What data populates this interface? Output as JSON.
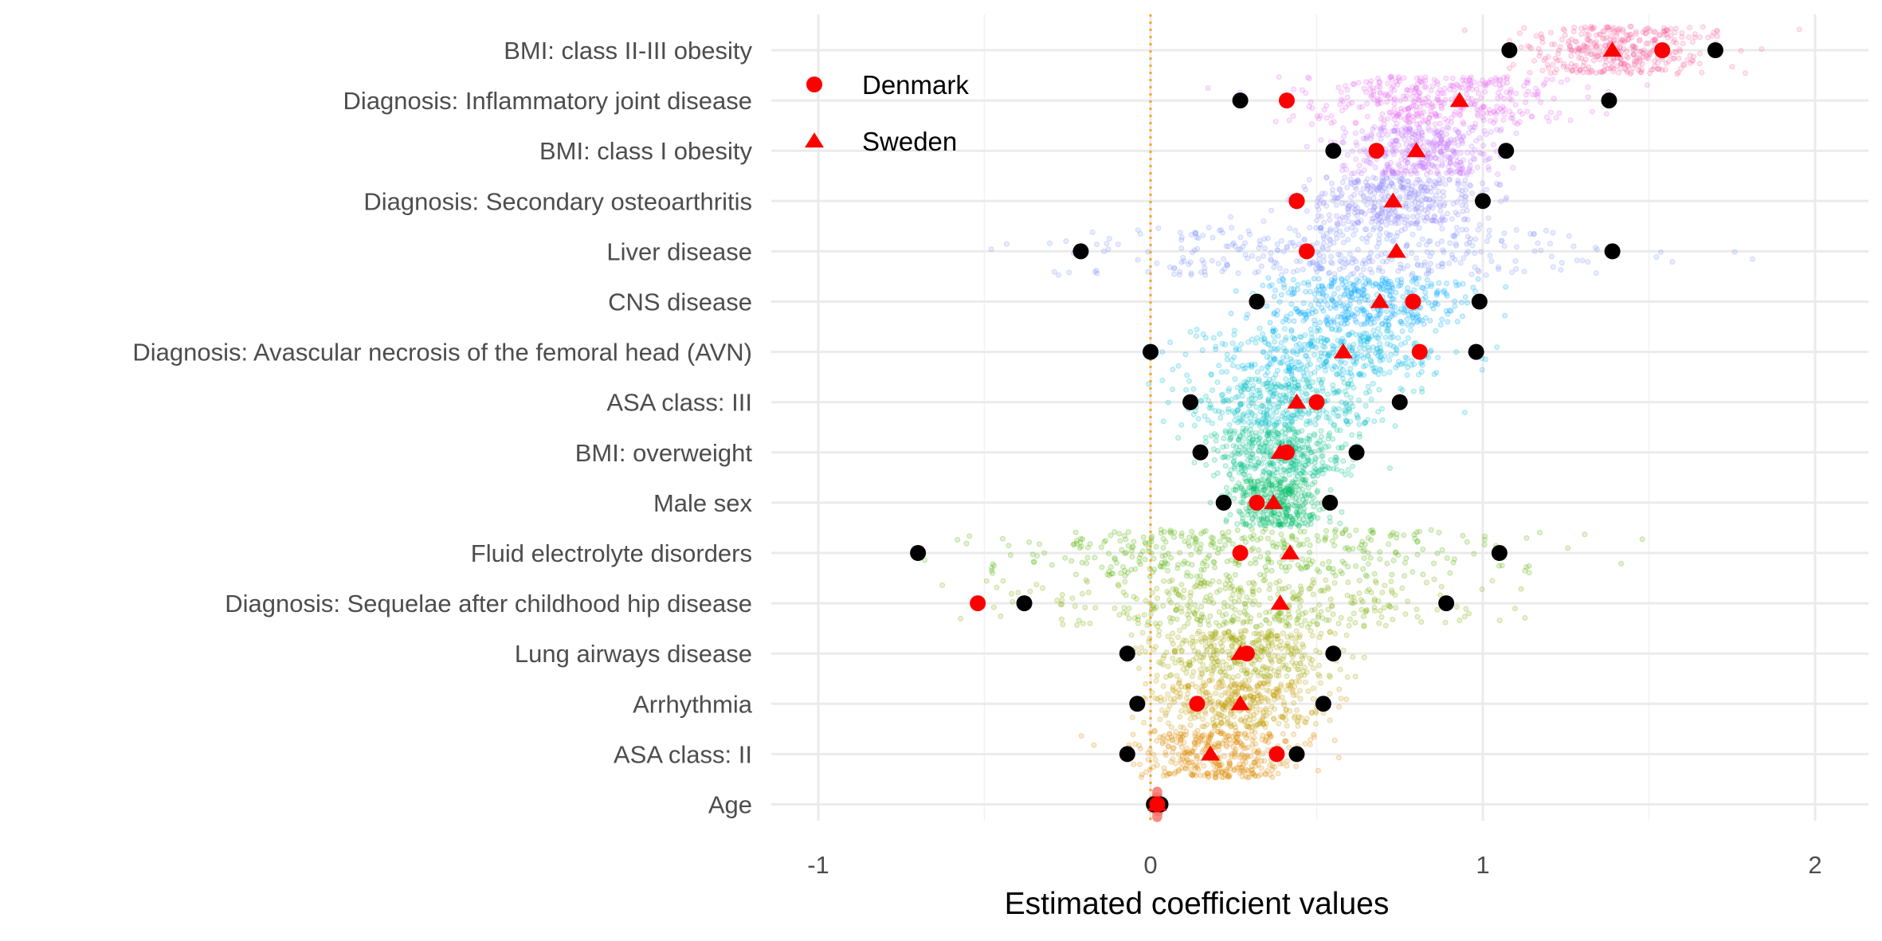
{
  "chart_data": {
    "type": "scatter",
    "xlabel": "Estimated coefficient values",
    "xlim": [
      -1.13,
      2.13
    ],
    "xticks": [
      -1,
      0,
      1,
      2
    ],
    "xtick_labels": [
      "-1",
      "0",
      "1",
      "2"
    ],
    "reference_line": 0,
    "grid": true,
    "legend_position": "top-left",
    "legend": [
      {
        "name": "Denmark",
        "shape": "circle",
        "color": "#ff0000"
      },
      {
        "name": "Sweden",
        "shape": "triangle",
        "color": "#ff0000"
      }
    ],
    "colors": {
      "ci_points": "#000000",
      "estimates": "#ff0000",
      "reference_line": "#f5a623",
      "grid": "#ebebeb"
    },
    "categories": [
      "BMI: class II-III obesity",
      "Diagnosis: Inflammatory joint disease",
      "BMI: class I obesity",
      "Diagnosis: Secondary osteoarthritis",
      "Liver disease",
      "CNS disease",
      "Diagnosis: Avascular necrosis of the femoral head (AVN)",
      "ASA class: III",
      "BMI: overweight",
      "Male sex",
      "Fluid electrolyte disorders",
      "Diagnosis: Sequelae after childhood hip disease",
      "Lung airways disease",
      "Arrhythmia",
      "ASA class: II",
      "Age"
    ],
    "rows": [
      {
        "label": "BMI: class II-III obesity",
        "ci_low": 1.08,
        "ci_high": 1.7,
        "denmark": 1.54,
        "sweden": 1.39,
        "center": 1.42,
        "spread": 0.14,
        "color": "#f767a1"
      },
      {
        "label": "Diagnosis: Inflammatory joint disease",
        "ci_low": 0.27,
        "ci_high": 1.38,
        "denmark": 0.41,
        "sweden": 0.93,
        "center": 0.84,
        "spread": 0.2,
        "color": "#e76bf3"
      },
      {
        "label": "BMI: class I obesity",
        "ci_low": 0.55,
        "ci_high": 1.07,
        "denmark": 0.68,
        "sweden": 0.8,
        "center": 0.81,
        "spread": 0.12,
        "color": "#c77cff"
      },
      {
        "label": "Diagnosis: Secondary osteoarthritis",
        "ci_low": 0.44,
        "ci_high": 1.0,
        "denmark": 0.44,
        "sweden": 0.73,
        "center": 0.73,
        "spread": 0.13,
        "color": "#9590ff"
      },
      {
        "label": "Liver disease",
        "ci_low": -0.21,
        "ci_high": 1.39,
        "denmark": 0.47,
        "sweden": 0.74,
        "center": 0.62,
        "spread": 0.35,
        "color": "#7f96ff"
      },
      {
        "label": "CNS disease",
        "ci_low": 0.32,
        "ci_high": 0.99,
        "denmark": 0.79,
        "sweden": 0.69,
        "center": 0.64,
        "spread": 0.15,
        "color": "#00a9ff"
      },
      {
        "label": "Diagnosis: Avascular necrosis of the femoral head (AVN)",
        "ci_low": 0.0,
        "ci_high": 0.98,
        "denmark": 0.81,
        "sweden": 0.58,
        "center": 0.52,
        "spread": 0.19,
        "color": "#00b8e7"
      },
      {
        "label": "ASA class: III",
        "ci_low": 0.12,
        "ci_high": 0.75,
        "denmark": 0.5,
        "sweden": 0.44,
        "center": 0.41,
        "spread": 0.14,
        "color": "#00bfc4"
      },
      {
        "label": "BMI: overweight",
        "ci_low": 0.15,
        "ci_high": 0.62,
        "denmark": 0.41,
        "sweden": 0.39,
        "center": 0.39,
        "spread": 0.1,
        "color": "#00c08b"
      },
      {
        "label": "Male sex",
        "ci_low": 0.22,
        "ci_high": 0.54,
        "denmark": 0.32,
        "sweden": 0.37,
        "center": 0.38,
        "spread": 0.07,
        "color": "#00be67"
      },
      {
        "label": "Fluid electrolyte disorders",
        "ci_low": -0.7,
        "ci_high": 1.05,
        "denmark": 0.27,
        "sweden": 0.42,
        "center": 0.3,
        "spread": 0.37,
        "color": "#53b400"
      },
      {
        "label": "Diagnosis: Sequelae after childhood hip disease",
        "ci_low": -0.38,
        "ci_high": 0.89,
        "denmark": -0.52,
        "sweden": 0.39,
        "center": 0.28,
        "spread": 0.3,
        "color": "#7cae00"
      },
      {
        "label": "Lung airways disease",
        "ci_low": -0.07,
        "ci_high": 0.55,
        "denmark": 0.29,
        "sweden": 0.27,
        "center": 0.27,
        "spread": 0.14,
        "color": "#a3a500"
      },
      {
        "label": "Arrhythmia",
        "ci_low": -0.04,
        "ci_high": 0.52,
        "denmark": 0.14,
        "sweden": 0.27,
        "center": 0.26,
        "spread": 0.13,
        "color": "#c49a00"
      },
      {
        "label": "ASA class: II",
        "ci_low": -0.07,
        "ci_high": 0.44,
        "denmark": 0.38,
        "sweden": 0.18,
        "center": 0.19,
        "spread": 0.12,
        "color": "#de8c00"
      },
      {
        "label": "Age",
        "ci_low": 0.01,
        "ci_high": 0.03,
        "denmark": 0.02,
        "sweden": 0.02,
        "center": 0.02,
        "spread": 0.005,
        "color": "#f8766d"
      }
    ]
  }
}
